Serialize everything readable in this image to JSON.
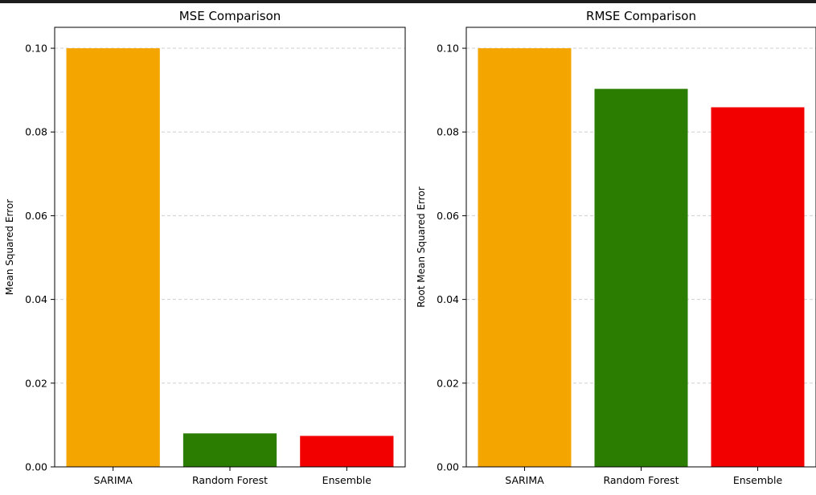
{
  "chart_data": [
    {
      "type": "bar",
      "title": "MSE Comparison",
      "xlabel": "",
      "ylabel": "Mean Squared Error",
      "categories": [
        "SARIMA",
        "Random Forest",
        "Ensemble"
      ],
      "values": [
        0.1,
        0.008,
        0.0074
      ],
      "colors": [
        "#f5a500",
        "#2a7d00",
        "#f20000"
      ],
      "ylim": [
        0,
        0.105
      ],
      "yticks": [
        "0.00",
        "0.02",
        "0.04",
        "0.06",
        "0.08",
        "0.10"
      ],
      "grid": "y-dashed"
    },
    {
      "type": "bar",
      "title": "RMSE Comparison",
      "xlabel": "",
      "ylabel": "Root Mean Squared Error",
      "categories": [
        "SARIMA",
        "Random Forest",
        "Ensemble"
      ],
      "values": [
        0.1,
        0.0903,
        0.0859
      ],
      "colors": [
        "#f5a500",
        "#2a7d00",
        "#f20000"
      ],
      "ylim": [
        0,
        0.105
      ],
      "yticks": [
        "0.00",
        "0.02",
        "0.04",
        "0.06",
        "0.08",
        "0.10"
      ],
      "grid": "y-dashed"
    }
  ]
}
